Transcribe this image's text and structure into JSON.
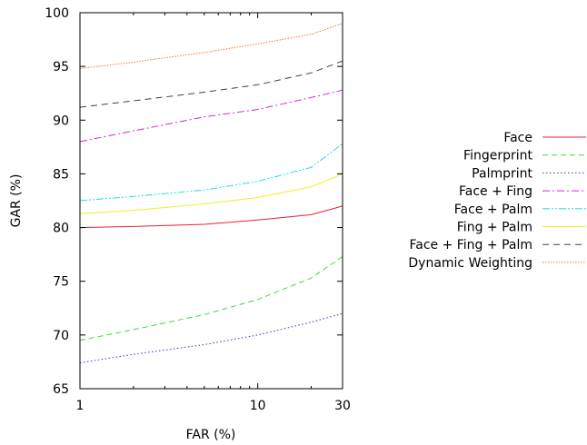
{
  "chart_data": {
    "type": "line",
    "xlabel": "FAR (%)",
    "ylabel": "GAR (%)",
    "xscale": "log",
    "xlim": [
      1,
      30
    ],
    "ylim": [
      65,
      100
    ],
    "xticks": [
      1,
      10,
      30
    ],
    "yticks": [
      65,
      70,
      75,
      80,
      85,
      90,
      95,
      100
    ],
    "grid": false,
    "legend_position": "right",
    "series": [
      {
        "name": "Face",
        "color": "#e8242a",
        "dash": "solid",
        "x": [
          1,
          2,
          5,
          10,
          20,
          30
        ],
        "y": [
          80.0,
          80.1,
          80.3,
          80.7,
          81.2,
          82.0
        ]
      },
      {
        "name": "Fingerprint",
        "color": "#35e035",
        "dash": "dashed",
        "x": [
          1,
          2,
          5,
          10,
          20,
          30
        ],
        "y": [
          69.5,
          70.5,
          71.9,
          73.3,
          75.3,
          77.3
        ]
      },
      {
        "name": "Palmprint",
        "color": "#3030e0",
        "dash": "dotted",
        "x": [
          1,
          2,
          5,
          10,
          20,
          30
        ],
        "y": [
          67.4,
          68.2,
          69.1,
          70.0,
          71.2,
          72.0
        ]
      },
      {
        "name": "Face + Fing",
        "color": "#e020e0",
        "dash": "dashdot",
        "x": [
          1,
          2,
          5,
          10,
          20,
          30
        ],
        "y": [
          88.0,
          89.0,
          90.3,
          91.0,
          92.1,
          92.8
        ]
      },
      {
        "name": "Face + Palm",
        "color": "#20e0e0",
        "dash": "dashdotdot",
        "x": [
          1,
          2,
          5,
          10,
          20,
          30
        ],
        "y": [
          82.5,
          82.9,
          83.5,
          84.3,
          85.6,
          87.8
        ]
      },
      {
        "name": "Fing + Palm",
        "color": "#f0f020",
        "dash": "solid",
        "x": [
          1,
          2,
          5,
          10,
          20,
          30
        ],
        "y": [
          81.3,
          81.6,
          82.2,
          82.8,
          83.8,
          85.0
        ]
      },
      {
        "name": "Face + Fing + Palm",
        "color": "#404040",
        "dash": "longdash",
        "x": [
          1,
          2,
          5,
          10,
          20,
          30
        ],
        "y": [
          91.2,
          91.8,
          92.6,
          93.3,
          94.4,
          95.5
        ]
      },
      {
        "name": "Dynamic Weighting",
        "color": "#f07830",
        "dash": "fine",
        "x": [
          1,
          2,
          5,
          10,
          20,
          30
        ],
        "y": [
          94.8,
          95.4,
          96.3,
          97.1,
          98.0,
          99.0
        ]
      }
    ]
  }
}
